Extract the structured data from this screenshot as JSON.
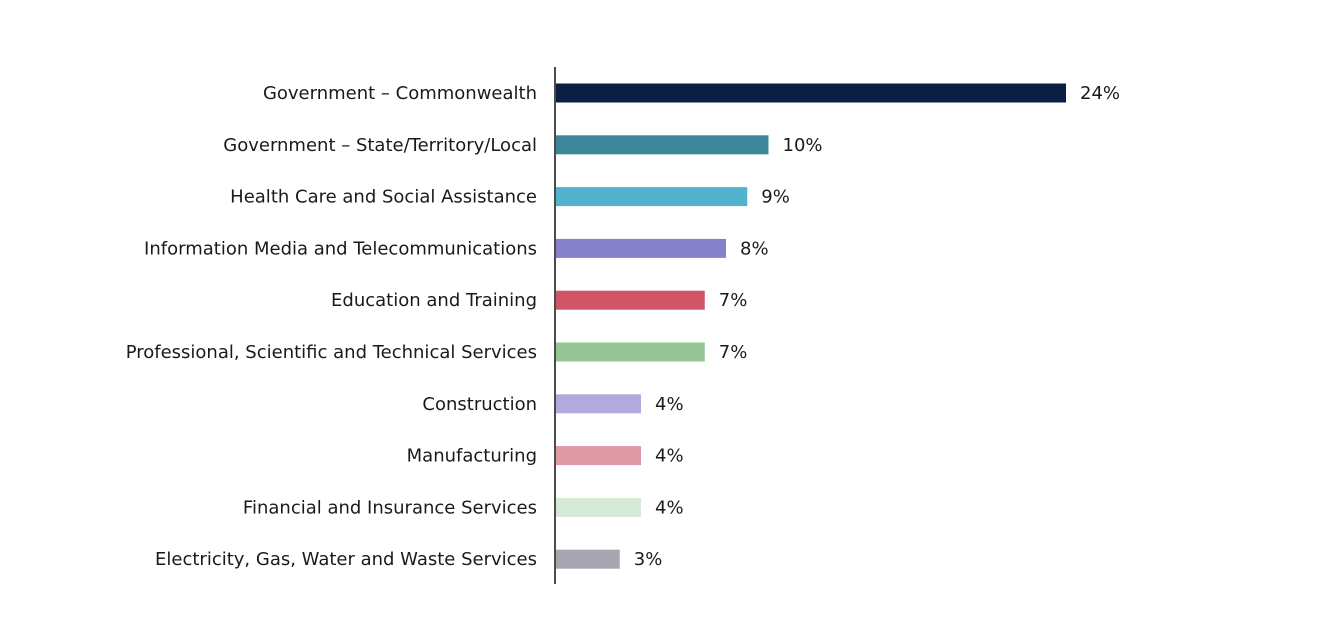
{
  "chart_data": {
    "type": "bar",
    "orientation": "horizontal",
    "title": "",
    "xlabel": "",
    "ylabel": "",
    "xlim": [
      0,
      24
    ],
    "grid": false,
    "categories": [
      "Government – Commonwealth",
      "Government – State/Territory/Local",
      "Health Care and Social Assistance",
      "Information Media and Telecommunications",
      "Education and Training",
      "Professional, Scientific and Technical Services",
      "Construction",
      "Manufacturing",
      "Financial and Insurance Services",
      "Electricity, Gas, Water and Waste Services"
    ],
    "values": [
      24,
      10,
      9,
      8,
      7,
      7,
      4,
      4,
      4,
      3
    ],
    "data_labels": [
      "24%",
      "10%",
      "9%",
      "8%",
      "7%",
      "7%",
      "4%",
      "4%",
      "4%",
      "3%"
    ],
    "colors": [
      "#0b1f45",
      "#3b8799",
      "#53b3cf",
      "#8781cb",
      "#d25467",
      "#94c592",
      "#b0abdc",
      "#df99a5",
      "#d6e9d6",
      "#a6a5b0"
    ]
  }
}
